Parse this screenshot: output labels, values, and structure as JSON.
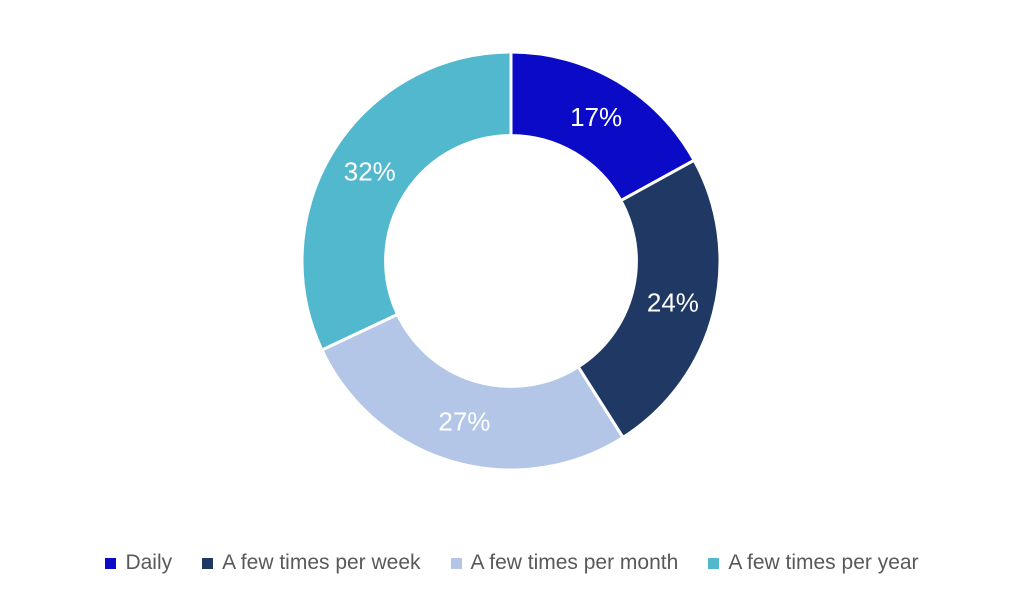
{
  "page": {
    "background_color": "#ffffff"
  },
  "chart_data": {
    "type": "pie",
    "variant": "donut",
    "title": "",
    "categories": [
      "Daily",
      "A few times per week",
      "A few times per month",
      "A few times per year"
    ],
    "values": [
      17,
      24,
      27,
      32
    ],
    "data_labels": [
      "17%",
      "24%",
      "27%",
      "32%"
    ],
    "colors": [
      "#0B0BC7",
      "#1F3864",
      "#B4C6E7",
      "#52B8CE"
    ],
    "data_label_color": "#FFFFFF",
    "slice_border_color": "#FFFFFF",
    "start_angle_deg": 0,
    "direction": "clockwise",
    "hole_ratio": 0.6,
    "legend": {
      "position": "bottom",
      "text_color": "#595959"
    }
  }
}
